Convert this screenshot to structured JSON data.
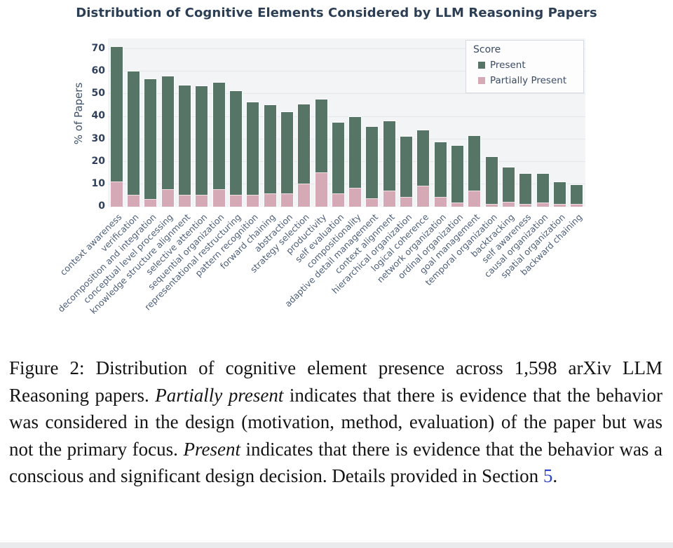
{
  "colors": {
    "present": "#567567",
    "partially_present": "#d5a9b6",
    "plot_background": "#f2f4f6",
    "gridline": "#e4e8ed",
    "title_text": "#2c3e54",
    "axis_tick_text": "#30405a",
    "x_label_text": "#4d5f7a",
    "legend_border": "#d7dbe1",
    "caption_link": "#2b44cc"
  },
  "chart_data": {
    "type": "bar",
    "stacked": true,
    "title": "Distribution of Cognitive Elements Considered by LLM Reasoning Papers",
    "xlabel": "",
    "ylabel": "% of Papers",
    "ylim": [
      0,
      74.7
    ],
    "yticks": [
      0,
      10,
      20,
      30,
      40,
      50,
      60,
      70
    ],
    "grid": true,
    "legend": {
      "title": "Score",
      "position": "upper-right"
    },
    "categories": [
      "context awareness",
      "verification",
      "decomposition and integration",
      "conceptual level processing",
      "knowledge structure alignment",
      "selective attention",
      "sequential organization",
      "representational restructuring",
      "pattern recognition",
      "forward chaining",
      "abstraction",
      "strategy selection",
      "productivity",
      "self evaluation",
      "compositionality",
      "adaptive detail management",
      "context alignment",
      "hierarchical organization",
      "logical coherence",
      "network organization",
      "ordinal organization",
      "goal management",
      "temporal organization",
      "backtracking",
      "self awareness",
      "causal organization",
      "spatial organization",
      "backward chaining"
    ],
    "series": [
      {
        "name": "Present",
        "color": "#567567",
        "values": [
          60,
          55,
          53.5,
          50.5,
          49,
          48.5,
          47.5,
          46.5,
          41.5,
          39.5,
          36.5,
          35.5,
          32.5,
          32,
          32,
          32,
          31,
          27,
          25,
          24.5,
          25.5,
          24.5,
          21,
          15.5,
          13.5,
          13,
          10,
          8.5
        ]
      },
      {
        "name": "Partially Present",
        "color": "#d5a9b6",
        "values": [
          11,
          5,
          3,
          7.5,
          5,
          5,
          7.5,
          5,
          5,
          5.5,
          5.5,
          10,
          15,
          5.5,
          8,
          3.5,
          7,
          4,
          9,
          4,
          1.5,
          7,
          1,
          2,
          1,
          1.5,
          1,
          1
        ]
      }
    ],
    "stack_order_bottom_to_top": [
      "Partially Present",
      "Present"
    ]
  },
  "caption": {
    "segments": [
      {
        "text": "Figure 2:  Distribution of cognitive element presence across 1,598 arXiv LLM Reasoning papers.  ",
        "style": "normal"
      },
      {
        "text": "Partially present",
        "style": "italic"
      },
      {
        "text": " indicates that there is evidence that the behavior was considered in the design (motivation, method, evaluation) of the paper but was not the primary focus.  ",
        "style": "normal"
      },
      {
        "text": "Present",
        "style": "italic"
      },
      {
        "text": " indicates that there is evidence that the behavior was a conscious and significant design decision.  Details provided in Section ",
        "style": "normal"
      },
      {
        "text": "5",
        "style": "link"
      },
      {
        "text": ".",
        "style": "normal"
      }
    ]
  }
}
